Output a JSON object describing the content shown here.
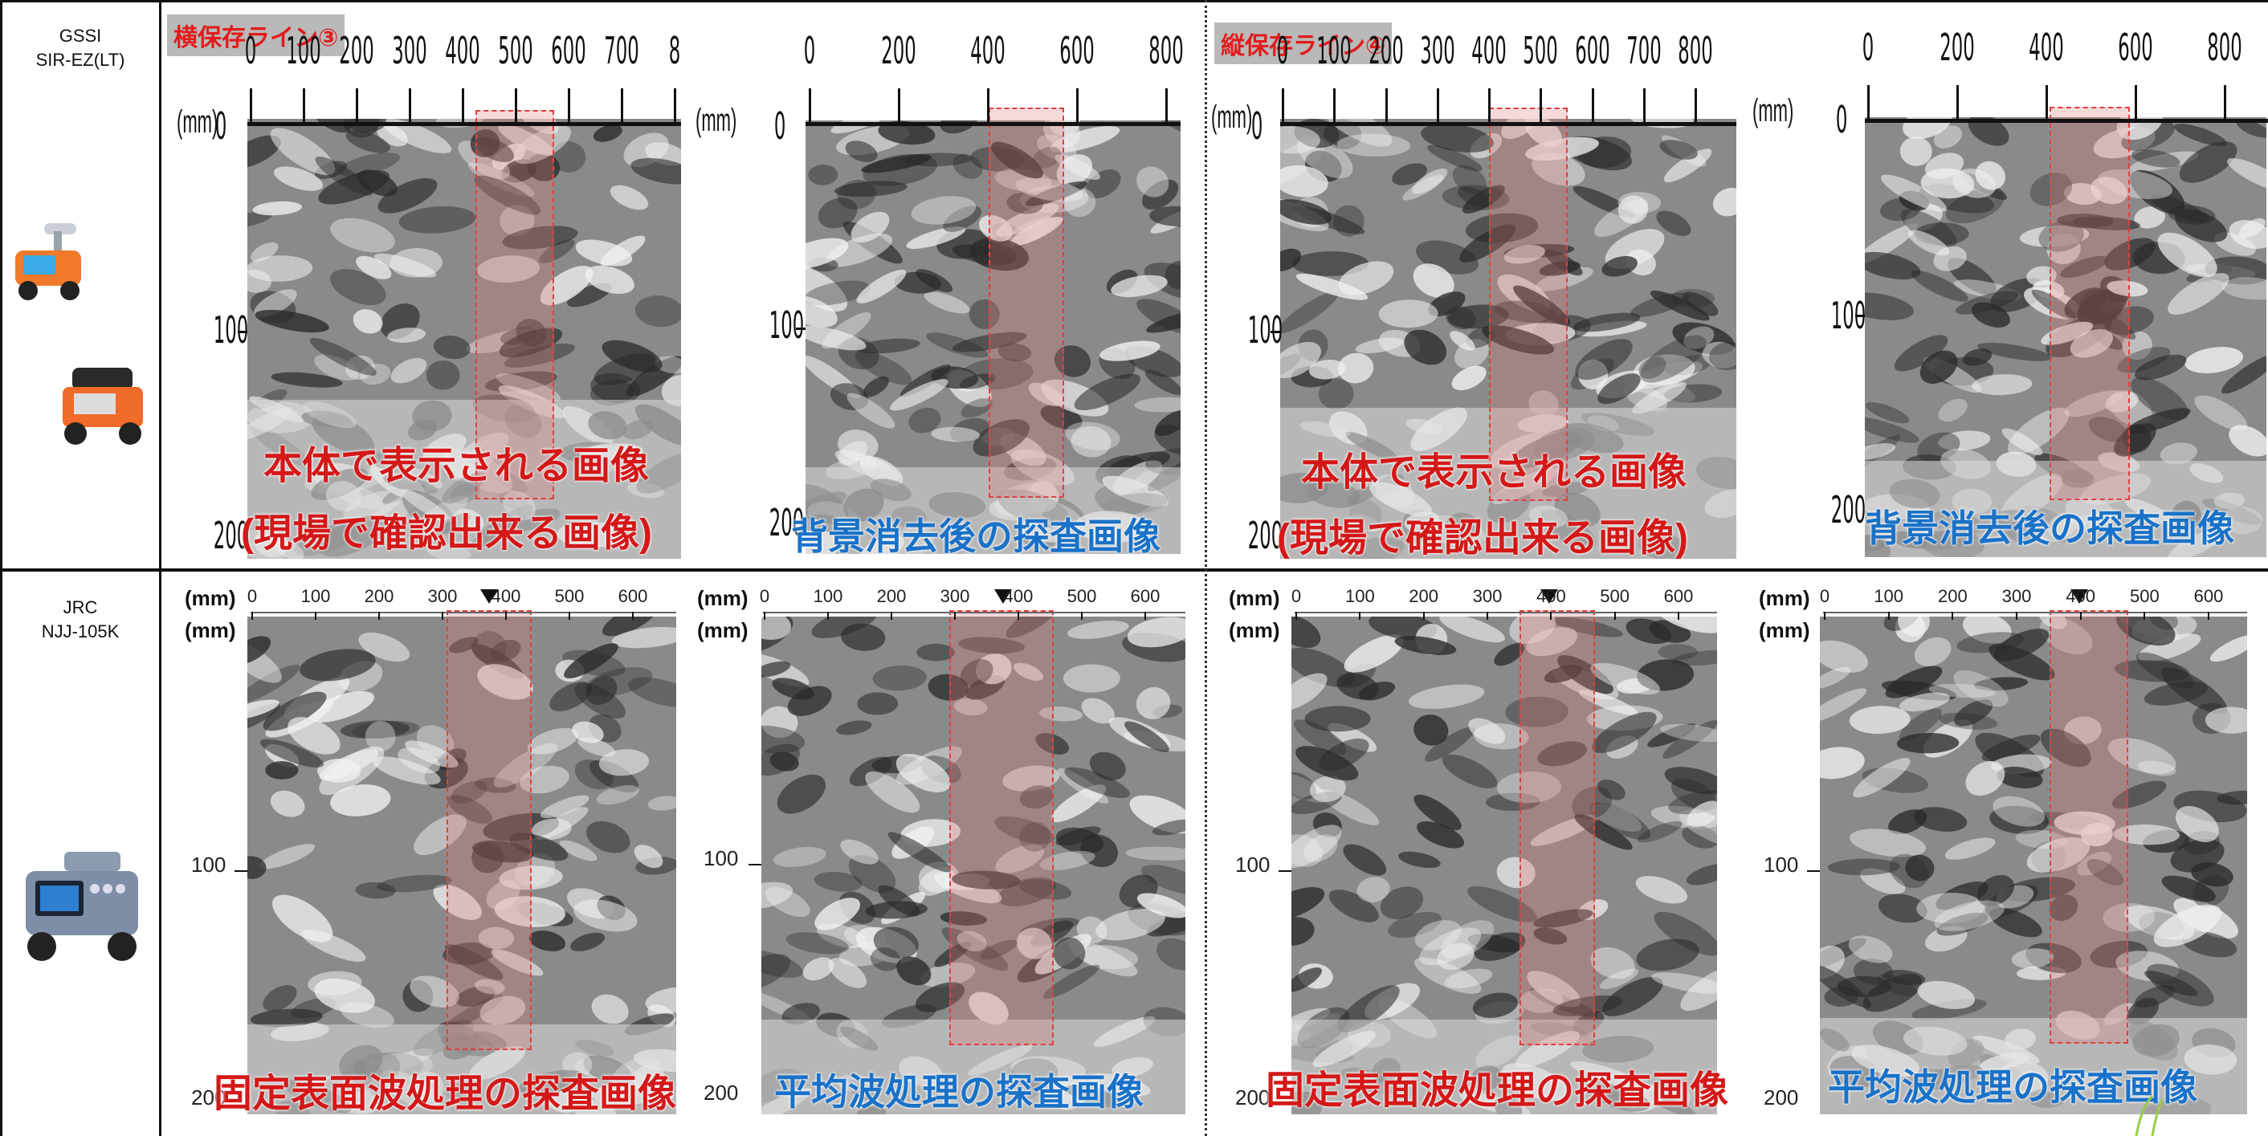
{
  "devices": [
    {
      "line1": "GSSI",
      "line2": "SIR-EZ(LT)"
    },
    {
      "line1": "JRC",
      "line2": "NJJ-105K"
    }
  ],
  "tags": {
    "left": "横保存ライン③",
    "right": "縦保存ライン④"
  },
  "units": {
    "mm": "(mm)"
  },
  "axes": {
    "top_a_ticks": [
      "0",
      "100",
      "200",
      "300",
      "400",
      "500",
      "600",
      "700",
      "8"
    ],
    "top_b_ticks": [
      "0",
      "200",
      "400",
      "600",
      "800"
    ],
    "top_c_ticks": [
      "0",
      "100",
      "200",
      "300",
      "400",
      "500",
      "600",
      "700",
      "800"
    ],
    "top_d_ticks": [
      "0",
      "200",
      "400",
      "600",
      "800"
    ],
    "bottom_ticks": [
      "0",
      "100",
      "200",
      "300",
      "400",
      "500",
      "600"
    ],
    "depth_top": [
      "0",
      "100",
      "200"
    ],
    "depth_bottom": [
      "100",
      "200"
    ]
  },
  "captions": {
    "body_line1": "本体で表示される画像",
    "body_line2": "(現場で確認出来る画像)",
    "bg_removed": "背景消去後の探査画像",
    "fixed_surface": "固定表面波処理の探査画像",
    "average": "平均波処理の探査画像"
  },
  "colors": {
    "caption_red": "#d41818",
    "caption_blue": "#1a72c8",
    "tag_red": "#e31b1b",
    "tag_bg": "#b9b9b9",
    "highlight": "#e04040"
  }
}
